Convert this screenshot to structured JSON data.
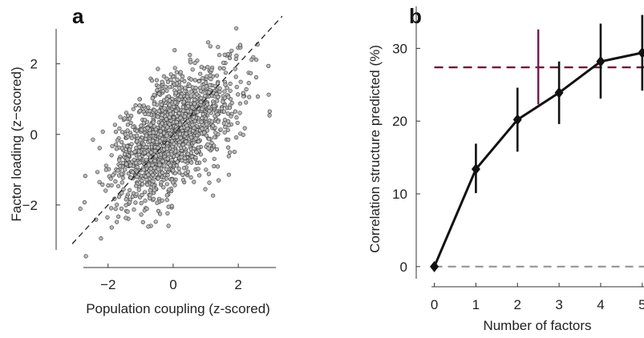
{
  "chart_data": [
    {
      "type": "scatter",
      "panel_label": "a",
      "xlabel": "Population coupling (z-scored)",
      "ylabel": "Factor loading (z−scored)",
      "xlim": [
        -3.3,
        3.5
      ],
      "ylim": [
        -3.5,
        3.4
      ],
      "xticks": [
        -2,
        0,
        2
      ],
      "yticks": [
        -2,
        0,
        2
      ],
      "xtick_labels": [
        "−2",
        "0",
        "2"
      ],
      "ytick_labels": [
        "−2",
        "0",
        "2"
      ],
      "point_color": "#b8b8b8",
      "point_edge_color": "#333333",
      "n_points": 1500,
      "correlation": 0.58,
      "seed": 7,
      "reference_line": {
        "style": "dashed",
        "slope": 1,
        "intercept": 0,
        "color": "#222222"
      },
      "grid": false
    },
    {
      "type": "line",
      "panel_label": "b",
      "xlabel": "Number of factors",
      "ylabel": "Correlation structure predicted (%)",
      "xlim": [
        -0.3,
        5.1
      ],
      "ylim": [
        -2,
        35
      ],
      "xticks": [
        0,
        1,
        2,
        3,
        4,
        5
      ],
      "yticks": [
        0,
        10,
        20,
        30
      ],
      "xtick_labels": [
        "0",
        "1",
        "2",
        "3",
        "4",
        "5"
      ],
      "ytick_labels": [
        "0",
        "10",
        "20",
        "30"
      ],
      "series": [
        {
          "x": [
            0,
            1,
            2,
            3,
            4,
            5
          ],
          "y": [
            0,
            13.4,
            20.2,
            23.9,
            28.2,
            29.4
          ],
          "err_low": [
            0,
            10.1,
            15.8,
            19.6,
            23.1,
            24.2
          ],
          "err_high": [
            0,
            16.9,
            24.6,
            28.2,
            33.4,
            34.6
          ],
          "color": "#111111",
          "marker": "diamond"
        }
      ],
      "reference": {
        "y": 27.4,
        "color": "#6b1a3a",
        "style": "dashed",
        "vertical_bar": {
          "x": 2.5,
          "y_low": 22.3,
          "y_high": 32.6,
          "color": "#7a1a4a"
        }
      },
      "baseline": {
        "y": 0,
        "color": "#9a9a9a",
        "style": "dashed"
      },
      "grid": false
    }
  ]
}
